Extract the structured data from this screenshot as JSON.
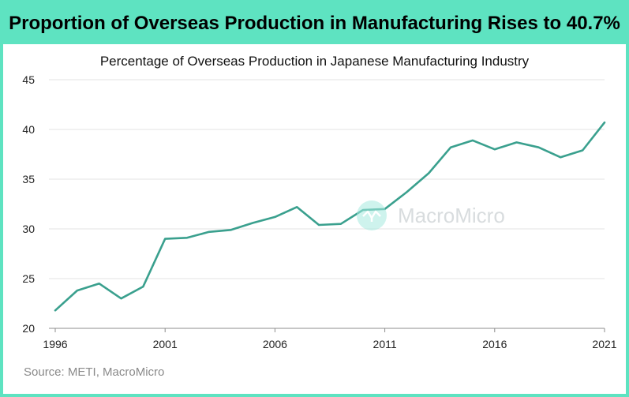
{
  "header": {
    "title": "Proportion of Overseas Production in Manufacturing Rises to 40.7%"
  },
  "chart_data": {
    "type": "line",
    "title": "Percentage of Overseas Production in Japanese Manufacturing Industry",
    "xlabel": "",
    "ylabel": "",
    "xlim": [
      1996,
      2021
    ],
    "ylim": [
      20,
      45
    ],
    "yticks": [
      20,
      25,
      30,
      35,
      40,
      45
    ],
    "xticks": [
      1996,
      2001,
      2006,
      2011,
      2016,
      2021
    ],
    "grid": true,
    "legend": "none",
    "series": [
      {
        "color": "#3aa08e",
        "x": [
          1996,
          1997,
          1998,
          1999,
          2000,
          2001,
          2002,
          2003,
          2004,
          2005,
          2006,
          2007,
          2008,
          2009,
          2010,
          2011,
          2012,
          2013,
          2014,
          2015,
          2016,
          2017,
          2018,
          2019,
          2020,
          2021
        ],
        "y": [
          21.8,
          23.8,
          24.5,
          23.0,
          24.2,
          29.0,
          29.1,
          29.7,
          29.9,
          30.6,
          31.2,
          32.2,
          30.4,
          30.5,
          31.9,
          32.0,
          33.7,
          35.6,
          38.2,
          38.9,
          38.0,
          38.7,
          38.2,
          37.2,
          37.9,
          40.7
        ]
      }
    ]
  },
  "footer": {
    "source": "Source: METI, MacroMicro"
  },
  "watermark": {
    "text": "MacroMicro"
  },
  "colors": {
    "accent": "#5ee3c1",
    "line": "#3aa08e",
    "grid": "#e3e3e3"
  }
}
